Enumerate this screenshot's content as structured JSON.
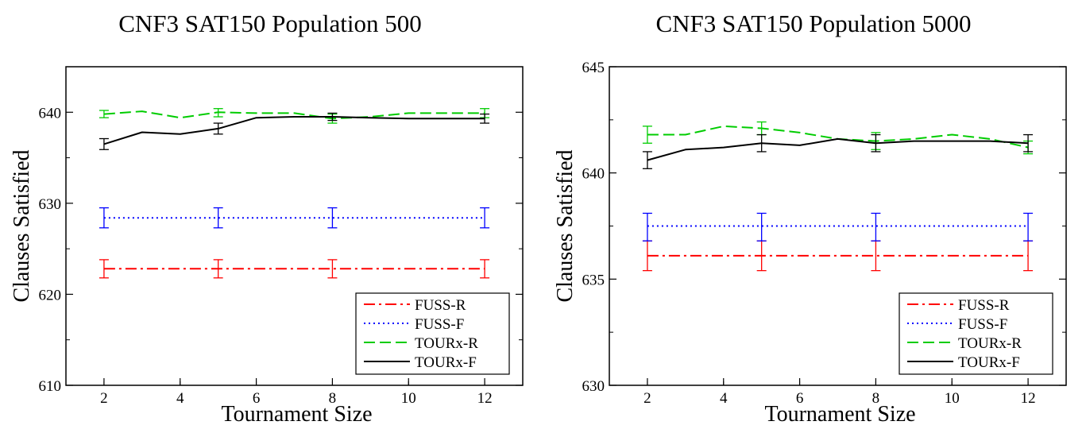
{
  "chart_data": [
    {
      "type": "line",
      "title": "CNF3 SAT150 Population 500",
      "xlabel": "Tournament Size",
      "ylabel": "Clauses Satisfied",
      "xlim": [
        1,
        13
      ],
      "ylim": [
        610,
        645
      ],
      "xticks": [
        2,
        4,
        6,
        8,
        10,
        12
      ],
      "yticks": [
        610,
        620,
        630,
        640
      ],
      "grid": false,
      "legend_position": "bottom-right",
      "series": [
        {
          "name": "FUSS-R",
          "color": "#ff0000",
          "style": "dashdot",
          "x": [
            2,
            5,
            8,
            12
          ],
          "y": [
            622.8,
            622.8,
            622.8,
            622.8
          ],
          "error_x": [
            2,
            5,
            8,
            12
          ],
          "error_low": [
            621.8,
            621.8,
            621.8,
            621.8
          ],
          "error_high": [
            623.8,
            623.8,
            623.8,
            623.8
          ]
        },
        {
          "name": "FUSS-F",
          "color": "#0000ff",
          "style": "dotted",
          "x": [
            2,
            5,
            8,
            12
          ],
          "y": [
            628.4,
            628.4,
            628.4,
            628.4
          ],
          "error_x": [
            2,
            5,
            8,
            12
          ],
          "error_low": [
            627.3,
            627.3,
            627.3,
            627.3
          ],
          "error_high": [
            629.5,
            629.5,
            629.5,
            629.5
          ]
        },
        {
          "name": "TOURx-R",
          "color": "#00cc00",
          "style": "dashed",
          "x": [
            2,
            3,
            4,
            5,
            6,
            7,
            8,
            9,
            10,
            11,
            12
          ],
          "y": [
            639.8,
            640.1,
            639.4,
            640.0,
            639.9,
            639.9,
            639.3,
            639.5,
            639.9,
            639.9,
            639.9
          ],
          "error_x": [
            2,
            5,
            8,
            12
          ],
          "error_low": [
            639.4,
            639.5,
            638.8,
            639.4
          ],
          "error_high": [
            640.2,
            640.4,
            639.8,
            640.4
          ]
        },
        {
          "name": "TOURx-F",
          "color": "#000000",
          "style": "solid",
          "x": [
            2,
            3,
            4,
            5,
            6,
            7,
            8,
            9,
            10,
            11,
            12
          ],
          "y": [
            636.5,
            637.8,
            637.6,
            638.2,
            639.4,
            639.5,
            639.5,
            639.4,
            639.3,
            639.3,
            639.3
          ],
          "error_x": [
            2,
            5,
            8,
            12
          ],
          "error_low": [
            635.9,
            637.6,
            639.1,
            638.8
          ],
          "error_high": [
            637.1,
            638.8,
            639.9,
            639.8
          ]
        }
      ]
    },
    {
      "type": "line",
      "title": "CNF3 SAT150 Population 5000",
      "xlabel": "Tournament Size",
      "ylabel": "Clauses Satisfied",
      "xlim": [
        1,
        13
      ],
      "ylim": [
        630,
        645
      ],
      "xticks": [
        2,
        4,
        6,
        8,
        10,
        12
      ],
      "yticks": [
        630,
        635,
        640,
        645
      ],
      "grid": false,
      "legend_position": "bottom-right",
      "series": [
        {
          "name": "FUSS-R",
          "color": "#ff0000",
          "style": "dashdot",
          "x": [
            2,
            5,
            8,
            12
          ],
          "y": [
            636.1,
            636.1,
            636.1,
            636.1
          ],
          "error_x": [
            2,
            5,
            8,
            12
          ],
          "error_low": [
            635.4,
            635.4,
            635.4,
            635.4
          ],
          "error_high": [
            636.8,
            636.8,
            636.8,
            636.8
          ]
        },
        {
          "name": "FUSS-F",
          "color": "#0000ff",
          "style": "dotted",
          "x": [
            2,
            5,
            8,
            12
          ],
          "y": [
            637.5,
            637.5,
            637.5,
            637.5
          ],
          "error_x": [
            2,
            5,
            8,
            12
          ],
          "error_low": [
            636.8,
            636.8,
            636.8,
            636.8
          ],
          "error_high": [
            638.1,
            638.1,
            638.1,
            638.1
          ]
        },
        {
          "name": "TOURx-R",
          "color": "#00cc00",
          "style": "dashed",
          "x": [
            2,
            3,
            4,
            5,
            6,
            7,
            8,
            9,
            10,
            11,
            12
          ],
          "y": [
            641.8,
            641.8,
            642.2,
            642.1,
            641.9,
            641.6,
            641.5,
            641.6,
            641.8,
            641.6,
            641.2
          ],
          "error_x": [
            2,
            5,
            8,
            12
          ],
          "error_low": [
            641.4,
            641.8,
            641.1,
            640.9
          ],
          "error_high": [
            642.2,
            642.4,
            641.9,
            641.5
          ]
        },
        {
          "name": "TOURx-F",
          "color": "#000000",
          "style": "solid",
          "x": [
            2,
            3,
            4,
            5,
            6,
            7,
            8,
            9,
            10,
            11,
            12
          ],
          "y": [
            640.6,
            641.1,
            641.2,
            641.4,
            641.3,
            641.6,
            641.4,
            641.5,
            641.5,
            641.5,
            641.4
          ],
          "error_x": [
            2,
            5,
            8,
            12
          ],
          "error_low": [
            640.2,
            641.0,
            641.0,
            641.0
          ],
          "error_high": [
            641.0,
            641.8,
            641.8,
            641.8
          ]
        }
      ]
    }
  ]
}
